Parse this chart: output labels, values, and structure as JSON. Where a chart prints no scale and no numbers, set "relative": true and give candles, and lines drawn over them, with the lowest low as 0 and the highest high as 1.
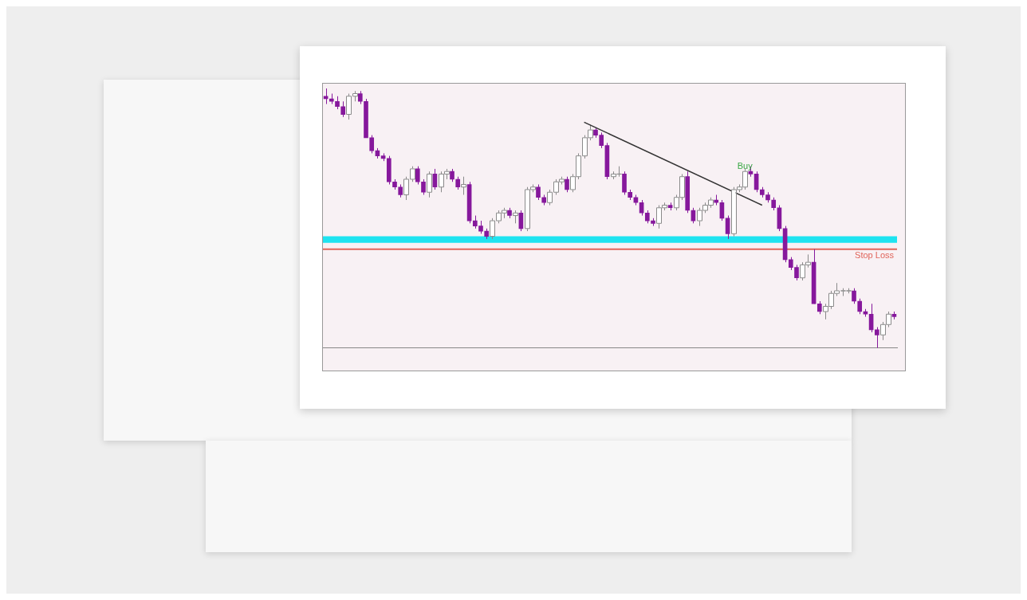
{
  "chart_data": {
    "type": "candlestick",
    "relative": true,
    "legend": false,
    "grid": false,
    "categories": [
      null,
      null,
      null,
      null,
      null,
      null,
      null,
      null,
      null,
      null,
      null,
      null,
      null,
      null,
      null,
      null,
      null,
      null,
      null,
      null,
      null,
      null,
      null,
      null,
      null,
      null,
      null,
      null,
      null,
      null,
      null,
      null,
      null,
      null,
      null,
      null,
      null,
      null,
      null,
      null,
      null,
      null,
      null,
      null,
      null,
      null,
      null,
      null,
      null,
      null,
      null,
      null,
      null,
      null,
      null,
      null,
      null,
      null,
      null,
      null,
      null,
      null,
      null,
      null,
      null,
      null,
      null,
      null,
      null,
      null,
      null,
      null,
      null,
      null,
      null,
      null,
      null,
      null,
      null,
      null,
      null,
      null,
      null,
      null,
      null,
      null,
      null,
      null,
      null,
      null,
      null,
      null,
      null,
      null,
      null,
      null,
      null,
      null,
      null,
      null
    ],
    "series": [
      {
        "colors": [
          "#86189c",
          "#86189c",
          "#86189c",
          "#86189c",
          "#ffffff",
          "#ffffff",
          "#86189c",
          "#86189c",
          "#86189c",
          "#86189c",
          "#86189c",
          "#86189c",
          "#86189c",
          "#86189c",
          "#ffffff",
          "#ffffff",
          "#86189c",
          "#86189c",
          "#ffffff",
          "#86189c",
          "#ffffff",
          "#ffffff",
          "#86189c",
          "#86189c",
          "#ffffff",
          "#86189c",
          "#86189c",
          "#86189c",
          "#86189c",
          "#ffffff",
          "#ffffff",
          "#ffffff",
          "#86189c",
          "#ffffff",
          "#86189c",
          "#ffffff",
          "#ffffff",
          "#86189c",
          "#86189c",
          "#ffffff",
          "#ffffff",
          "#ffffff",
          "#86189c",
          "#ffffff",
          "#ffffff",
          "#ffffff",
          "#ffffff",
          "#86189c",
          "#86189c",
          "#86189c",
          "#ffffff",
          "#ffffff",
          "#86189c",
          "#86189c",
          "#86189c",
          "#86189c",
          "#86189c",
          "#86189c",
          "#ffffff",
          "#ffffff",
          "#86189c",
          "#ffffff",
          "#ffffff",
          "#86189c",
          "#86189c",
          "#ffffff",
          "#ffffff",
          "#ffffff",
          "#86189c",
          "#86189c",
          "#86189c",
          "#ffffff",
          "#ffffff",
          "#ffffff",
          "#86189c",
          "#86189c",
          "#86189c",
          "#86189c",
          "#86189c",
          "#86189c",
          "#86189c",
          "#86189c",
          "#86189c",
          "#ffffff",
          "#ffffff",
          "#86189c",
          "#86189c",
          "#ffffff",
          "#ffffff",
          "#ffffff",
          "#ffffff",
          "#ffffff",
          "#86189c",
          "#86189c",
          "#86189c",
          "#86189c",
          "#86189c",
          "#ffffff",
          "#ffffff",
          "#86189c"
        ],
        "ohlc": [
          [
            0.97,
            1.0,
            0.94,
            0.96
          ],
          [
            0.96,
            0.98,
            0.94,
            0.95
          ],
          [
            0.95,
            0.97,
            0.92,
            0.93
          ],
          [
            0.93,
            0.95,
            0.89,
            0.9
          ],
          [
            0.9,
            0.98,
            0.88,
            0.97
          ],
          [
            0.97,
            0.99,
            0.95,
            0.98
          ],
          [
            0.98,
            0.99,
            0.94,
            0.95
          ],
          [
            0.95,
            0.96,
            0.81,
            0.81
          ],
          [
            0.81,
            0.82,
            0.75,
            0.76
          ],
          [
            0.76,
            0.77,
            0.73,
            0.74
          ],
          [
            0.74,
            0.75,
            0.72,
            0.73
          ],
          [
            0.73,
            0.74,
            0.63,
            0.64
          ],
          [
            0.64,
            0.65,
            0.61,
            0.62
          ],
          [
            0.62,
            0.63,
            0.58,
            0.59
          ],
          [
            0.59,
            0.66,
            0.57,
            0.65
          ],
          [
            0.65,
            0.7,
            0.64,
            0.69
          ],
          [
            0.69,
            0.7,
            0.63,
            0.64
          ],
          [
            0.64,
            0.65,
            0.59,
            0.6
          ],
          [
            0.6,
            0.68,
            0.58,
            0.67
          ],
          [
            0.67,
            0.69,
            0.61,
            0.62
          ],
          [
            0.62,
            0.68,
            0.6,
            0.67
          ],
          [
            0.67,
            0.69,
            0.65,
            0.68
          ],
          [
            0.68,
            0.69,
            0.64,
            0.65
          ],
          [
            0.65,
            0.66,
            0.61,
            0.62
          ],
          [
            0.62,
            0.66,
            0.59,
            0.63
          ],
          [
            0.63,
            0.64,
            0.48,
            0.49
          ],
          [
            0.49,
            0.51,
            0.46,
            0.47
          ],
          [
            0.47,
            0.49,
            0.44,
            0.45
          ],
          [
            0.45,
            0.46,
            0.42,
            0.43
          ],
          [
            0.43,
            0.5,
            0.42,
            0.49
          ],
          [
            0.49,
            0.53,
            0.48,
            0.52
          ],
          [
            0.52,
            0.54,
            0.5,
            0.53
          ],
          [
            0.53,
            0.54,
            0.5,
            0.51
          ],
          [
            0.51,
            0.53,
            0.48,
            0.52
          ],
          [
            0.52,
            0.53,
            0.45,
            0.46
          ],
          [
            0.46,
            0.62,
            0.45,
            0.61
          ],
          [
            0.61,
            0.63,
            0.6,
            0.62
          ],
          [
            0.62,
            0.63,
            0.57,
            0.58
          ],
          [
            0.58,
            0.59,
            0.55,
            0.56
          ],
          [
            0.56,
            0.61,
            0.55,
            0.6
          ],
          [
            0.6,
            0.65,
            0.59,
            0.64
          ],
          [
            0.64,
            0.66,
            0.63,
            0.65
          ],
          [
            0.65,
            0.66,
            0.6,
            0.61
          ],
          [
            0.61,
            0.67,
            0.6,
            0.66
          ],
          [
            0.66,
            0.75,
            0.65,
            0.74
          ],
          [
            0.74,
            0.82,
            0.73,
            0.81
          ],
          [
            0.81,
            0.86,
            0.8,
            0.84
          ],
          [
            0.84,
            0.85,
            0.81,
            0.82
          ],
          [
            0.82,
            0.83,
            0.77,
            0.78
          ],
          [
            0.78,
            0.79,
            0.65,
            0.66
          ],
          [
            0.66,
            0.68,
            0.65,
            0.67
          ],
          [
            0.67,
            0.7,
            0.66,
            0.67
          ],
          [
            0.67,
            0.68,
            0.59,
            0.6
          ],
          [
            0.6,
            0.61,
            0.57,
            0.58
          ],
          [
            0.58,
            0.59,
            0.55,
            0.56
          ],
          [
            0.56,
            0.57,
            0.51,
            0.52
          ],
          [
            0.52,
            0.53,
            0.48,
            0.49
          ],
          [
            0.49,
            0.5,
            0.47,
            0.48
          ],
          [
            0.48,
            0.55,
            0.46,
            0.54
          ],
          [
            0.54,
            0.56,
            0.53,
            0.55
          ],
          [
            0.55,
            0.56,
            0.53,
            0.54
          ],
          [
            0.54,
            0.59,
            0.53,
            0.58
          ],
          [
            0.58,
            0.67,
            0.57,
            0.66
          ],
          [
            0.66,
            0.68,
            0.52,
            0.53
          ],
          [
            0.53,
            0.54,
            0.48,
            0.49
          ],
          [
            0.49,
            0.54,
            0.47,
            0.53
          ],
          [
            0.53,
            0.56,
            0.52,
            0.55
          ],
          [
            0.55,
            0.58,
            0.54,
            0.57
          ],
          [
            0.57,
            0.59,
            0.55,
            0.56
          ],
          [
            0.56,
            0.57,
            0.49,
            0.5
          ],
          [
            0.5,
            0.51,
            0.42,
            0.44
          ],
          [
            0.44,
            0.62,
            0.43,
            0.61
          ],
          [
            0.61,
            0.63,
            0.6,
            0.62
          ],
          [
            0.62,
            0.69,
            0.61,
            0.68
          ],
          [
            0.68,
            0.7,
            0.66,
            0.67
          ],
          [
            0.67,
            0.68,
            0.6,
            0.61
          ],
          [
            0.61,
            0.62,
            0.58,
            0.59
          ],
          [
            0.59,
            0.6,
            0.56,
            0.57
          ],
          [
            0.57,
            0.58,
            0.53,
            0.54
          ],
          [
            0.54,
            0.55,
            0.45,
            0.46
          ],
          [
            0.46,
            0.47,
            0.33,
            0.34
          ],
          [
            0.34,
            0.35,
            0.3,
            0.31
          ],
          [
            0.31,
            0.32,
            0.26,
            0.27
          ],
          [
            0.27,
            0.33,
            0.26,
            0.32
          ],
          [
            0.32,
            0.36,
            0.31,
            0.33
          ],
          [
            0.33,
            0.38,
            0.17,
            0.17
          ],
          [
            0.17,
            0.18,
            0.13,
            0.14
          ],
          [
            0.14,
            0.17,
            0.11,
            0.16
          ],
          [
            0.16,
            0.22,
            0.15,
            0.21
          ],
          [
            0.21,
            0.25,
            0.2,
            0.22
          ],
          [
            0.22,
            0.23,
            0.2,
            0.22
          ],
          [
            0.22,
            0.23,
            0.21,
            0.22
          ],
          [
            0.22,
            0.23,
            0.17,
            0.18
          ],
          [
            0.18,
            0.19,
            0.13,
            0.14
          ],
          [
            0.14,
            0.15,
            0.12,
            0.13
          ],
          [
            0.13,
            0.17,
            0.06,
            0.07
          ],
          [
            0.07,
            0.08,
            0.0,
            0.05
          ],
          [
            0.05,
            0.1,
            0.03,
            0.09
          ],
          [
            0.09,
            0.14,
            0.08,
            0.13
          ],
          [
            0.13,
            0.14,
            0.11,
            0.12
          ]
        ]
      },
      {
        "type": "line",
        "color": "#333333",
        "values": [
          null,
          null,
          null,
          null,
          null,
          null,
          null,
          null,
          null,
          null,
          null,
          null,
          null,
          null,
          null,
          null,
          null,
          null,
          null,
          null,
          null,
          null,
          null,
          null,
          null,
          null,
          null,
          null,
          null,
          null,
          null,
          null,
          null,
          null,
          null,
          null,
          null,
          null,
          null,
          null,
          null,
          null,
          null,
          null,
          null,
          0.87,
          null,
          null,
          null,
          null,
          null,
          null,
          null,
          null,
          null,
          null,
          null,
          null,
          null,
          null,
          null,
          null,
          null,
          null,
          null,
          null,
          null,
          null,
          null,
          null,
          null,
          null,
          null,
          null,
          null,
          null,
          0.55,
          null,
          null,
          null,
          null,
          null,
          null,
          null,
          null,
          null,
          null,
          null,
          null,
          null,
          null,
          null,
          null,
          null,
          null,
          null,
          null,
          null,
          null,
          null
        ]
      }
    ],
    "bands": [
      {
        "axis": "y",
        "from": 0.405,
        "to": 0.43,
        "color": "#1ee3f0"
      }
    ],
    "ref_lines": [
      {
        "axis": "y",
        "value": 0.38,
        "label": "Stop Loss",
        "color": "#e0645a"
      }
    ],
    "annotations": [
      {
        "text": "Buy",
        "y": 0.65
      }
    ]
  }
}
